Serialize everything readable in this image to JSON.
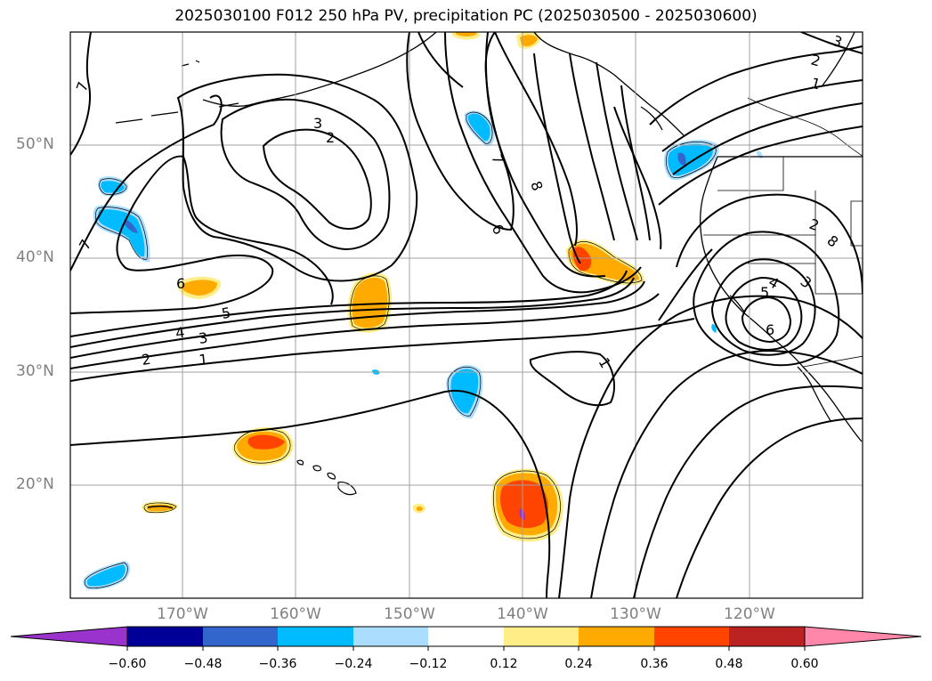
{
  "title": "2025030100 F012 250 hPa PV, precipitation PC (2025030500 - 2025030600)",
  "lat_labels": [
    "50°N",
    "40°N",
    "30°N",
    "20°N"
  ],
  "lon_labels": [
    "170°W",
    "160°W",
    "150°W",
    "140°W",
    "130°W",
    "120°W"
  ],
  "colorbar": {
    "ticks": [
      "−0.60",
      "−0.48",
      "−0.36",
      "−0.24",
      "−0.12",
      "0.12",
      "0.24",
      "0.36",
      "0.48",
      "0.60"
    ],
    "colors": [
      "#9933cc",
      "#000099",
      "#3366cc",
      "#00bbff",
      "#aaddff",
      "#ffffff",
      "#ffee88",
      "#ffaa00",
      "#ff4400",
      "#bb2222",
      "#ff88aa"
    ],
    "extend": "both"
  },
  "contour_labels": [
    "7",
    "3",
    "2",
    "7",
    "8",
    "6",
    "3",
    "2",
    "1",
    "7",
    "6",
    "5",
    "4",
    "3",
    "2",
    "1",
    "1",
    "2",
    "8",
    "4",
    "3",
    "5",
    "6"
  ],
  "colors": {
    "contour": "#000000",
    "grid": "#a0a0a0",
    "axis_label": "#808080"
  }
}
